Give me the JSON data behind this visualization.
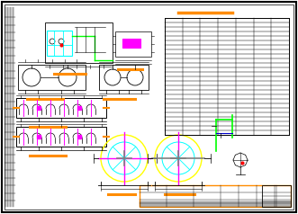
{
  "bg_color": "#ffffff",
  "border_color": "#000000",
  "orange_color": "#ff8c00",
  "cyan_color": "#00ffff",
  "magenta_color": "#ff00ff",
  "yellow_color": "#ffff00",
  "green_color": "#00ff00",
  "blue_color": "#0000cc",
  "gray_color": "#808080",
  "fig_width": 3.31,
  "fig_height": 2.38,
  "dpi": 100
}
